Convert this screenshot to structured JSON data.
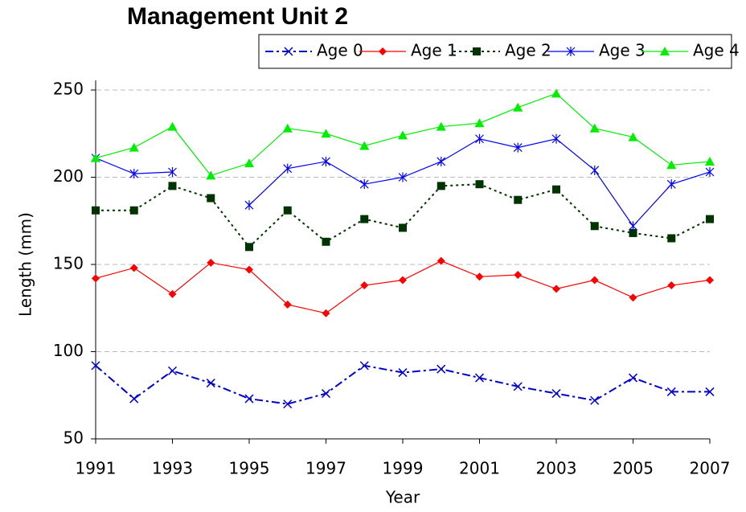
{
  "chart_data": {
    "type": "line",
    "title": "Management Unit 2",
    "x_label": "Year",
    "y_label": "Length (mm)",
    "x": [
      1991,
      1992,
      1993,
      1994,
      1995,
      1996,
      1997,
      1998,
      1999,
      2000,
      2001,
      2002,
      2003,
      2004,
      2005,
      2006,
      2007
    ],
    "xlim": [
      1991,
      2007
    ],
    "xticks": [
      1991,
      1993,
      1995,
      1997,
      1999,
      2001,
      2003,
      2005,
      2007
    ],
    "ylim": [
      50,
      250
    ],
    "yticks": [
      50,
      100,
      150,
      200,
      250
    ],
    "grid": true,
    "series": [
      {
        "name": "Age 0",
        "color": "#0000cc",
        "marker": "x",
        "dash": "dashdot",
        "values": [
          92,
          73,
          89,
          82,
          73,
          70,
          76,
          92,
          88,
          90,
          85,
          80,
          76,
          72,
          85,
          77,
          77
        ]
      },
      {
        "name": "Age 1",
        "color": "#ff0000",
        "marker": "diamond",
        "dash": "solid",
        "values": [
          142,
          148,
          133,
          151,
          147,
          127,
          122,
          138,
          141,
          152,
          143,
          144,
          136,
          141,
          131,
          138,
          141
        ]
      },
      {
        "name": "Age 2",
        "color": "#003300",
        "marker": "square",
        "dash": "dotted",
        "values": [
          181,
          181,
          195,
          188,
          160,
          181,
          163,
          176,
          171,
          195,
          196,
          187,
          193,
          172,
          168,
          165,
          176
        ]
      },
      {
        "name": "Age 3",
        "color": "#0000ff",
        "marker": "asterisk",
        "dash": "solid",
        "values": [
          211,
          202,
          203,
          null,
          184,
          205,
          209,
          196,
          200,
          209,
          222,
          217,
          222,
          204,
          172,
          196,
          203
        ]
      },
      {
        "name": "Age 4",
        "color": "#00ee00",
        "marker": "triangle",
        "dash": "solid",
        "values": [
          211,
          217,
          229,
          201,
          208,
          228,
          225,
          218,
          224,
          229,
          231,
          240,
          248,
          228,
          223,
          207,
          209
        ]
      }
    ]
  }
}
